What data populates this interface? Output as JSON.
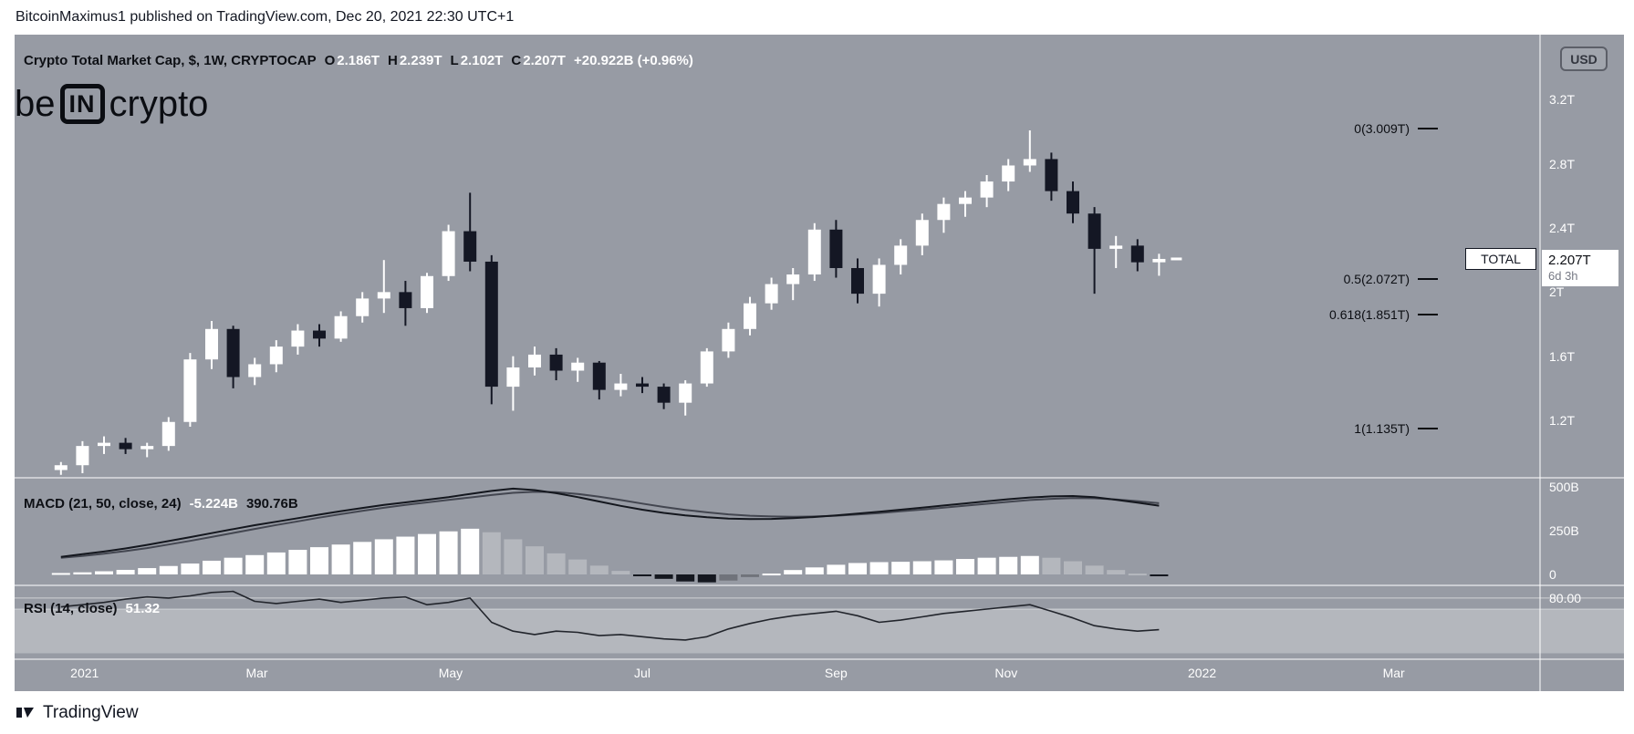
{
  "page": {
    "publish_line": "BitcoinMaximus1 published on TradingView.com, Dec 20, 2021 22:30 UTC+1",
    "footer_brand": "TradingView"
  },
  "watermark": {
    "part1": "be",
    "part2": "IN",
    "part3": "crypto"
  },
  "toolbar": {
    "currency_button": "USD"
  },
  "legend": {
    "title": "Crypto Total Market Cap, $, 1W, CRYPTOCAP",
    "ohlc": [
      {
        "k": "O",
        "v": "2.186T"
      },
      {
        "k": "H",
        "v": "2.239T"
      },
      {
        "k": "L",
        "v": "2.102T"
      },
      {
        "k": "C",
        "v": "2.207T"
      }
    ],
    "change": "+20.922B (+0.96%)"
  },
  "macd_legend": {
    "title": "MACD (21, 50, close, 24)",
    "hist_value": "-5.224B",
    "line_value": "390.76B"
  },
  "rsi_legend": {
    "title": "RSI (14, close)",
    "value": "51.32"
  },
  "fib_levels": [
    {
      "label": "0(3.009T)",
      "value": 3.009
    },
    {
      "label": "0.5(2.072T)",
      "value": 2.072
    },
    {
      "label": "0.618(1.851T)",
      "value": 1.851
    },
    {
      "label": "1(1.135T)",
      "value": 1.135
    }
  ],
  "price_label": {
    "symbol": "TOTAL",
    "price": "2.207T",
    "countdown": "6d 3h",
    "value": 2.207
  },
  "axes": {
    "price_ticks": [
      {
        "label": "3.2T",
        "value": 3.2
      },
      {
        "label": "2.8T",
        "value": 2.8
      },
      {
        "label": "2.4T",
        "value": 2.4
      },
      {
        "label": "2T",
        "value": 2.0
      },
      {
        "label": "1.6T",
        "value": 1.6
      },
      {
        "label": "1.2T",
        "value": 1.2
      }
    ],
    "macd_ticks": [
      {
        "label": "500B",
        "value": 500
      },
      {
        "label": "250B",
        "value": 250
      },
      {
        "label": "0",
        "value": 0
      }
    ],
    "rsi_ticks": [
      {
        "label": "80.00",
        "value": 80
      }
    ],
    "time_ticks": [
      {
        "label": "2021",
        "i": 1.1
      },
      {
        "label": "Mar",
        "i": 9.1
      },
      {
        "label": "May",
        "i": 18.1
      },
      {
        "label": "Jul",
        "i": 27.0
      },
      {
        "label": "Sep",
        "i": 36.0
      },
      {
        "label": "Nov",
        "i": 43.9
      },
      {
        "label": "2022",
        "i": 53.0
      },
      {
        "label": "Mar",
        "i": 61.9
      }
    ]
  },
  "colors": {
    "chart_bg": "#979ba4",
    "candle_up": "#ffffff",
    "candle_down": "#141724",
    "macd_line": "#14171e",
    "signal_line": "#434650",
    "rsi_line": "#22252c",
    "axis_text": "#ffffff"
  },
  "chart_data": [
    {
      "type": "candlestick",
      "title": "Crypto Total Market Cap, $, 1W, CRYPTOCAP",
      "interval": "1W",
      "unit": "T",
      "ylim": [
        0.85,
        3.35
      ],
      "x_labels": [
        "2021",
        "Mar",
        "May",
        "Jul",
        "Sep",
        "Nov",
        "2022",
        "Mar"
      ],
      "open": [
        0.89,
        0.92,
        1.04,
        1.06,
        1.02,
        1.04,
        1.19,
        1.58,
        1.77,
        1.47,
        1.55,
        1.66,
        1.76,
        1.71,
        1.85,
        1.96,
        2.0,
        1.9,
        2.1,
        2.38,
        2.19,
        1.41,
        1.53,
        1.61,
        1.51,
        1.56,
        1.39,
        1.43,
        1.41,
        1.31,
        1.43,
        1.63,
        1.77,
        1.93,
        2.05,
        2.11,
        2.39,
        2.15,
        1.99,
        2.17,
        2.29,
        2.45,
        2.55,
        2.59,
        2.69,
        2.79,
        2.83,
        2.63,
        2.49,
        2.27,
        2.29,
        2.186
      ],
      "high": [
        0.94,
        1.07,
        1.1,
        1.09,
        1.06,
        1.22,
        1.62,
        1.82,
        1.79,
        1.59,
        1.7,
        1.8,
        1.8,
        1.88,
        2.0,
        2.2,
        2.07,
        2.12,
        2.42,
        2.62,
        2.23,
        1.6,
        1.66,
        1.65,
        1.59,
        1.57,
        1.49,
        1.47,
        1.43,
        1.45,
        1.65,
        1.81,
        1.97,
        2.09,
        2.15,
        2.43,
        2.45,
        2.21,
        2.21,
        2.33,
        2.49,
        2.59,
        2.63,
        2.73,
        2.83,
        3.009,
        2.87,
        2.69,
        2.53,
        2.35,
        2.33,
        2.239
      ],
      "low": [
        0.86,
        0.87,
        0.99,
        0.99,
        0.97,
        1.01,
        1.16,
        1.52,
        1.4,
        1.42,
        1.5,
        1.61,
        1.66,
        1.69,
        1.81,
        1.87,
        1.79,
        1.87,
        2.07,
        2.13,
        1.3,
        1.26,
        1.48,
        1.45,
        1.44,
        1.33,
        1.35,
        1.37,
        1.27,
        1.23,
        1.41,
        1.59,
        1.73,
        1.89,
        1.95,
        2.07,
        2.09,
        1.93,
        1.91,
        2.11,
        2.23,
        2.37,
        2.47,
        2.53,
        2.63,
        2.75,
        2.57,
        2.43,
        1.99,
        2.15,
        2.13,
        2.102
      ],
      "close": [
        0.92,
        1.04,
        1.06,
        1.02,
        1.04,
        1.19,
        1.58,
        1.77,
        1.47,
        1.55,
        1.66,
        1.76,
        1.71,
        1.85,
        1.96,
        2.0,
        1.9,
        2.1,
        2.38,
        2.19,
        1.41,
        1.53,
        1.61,
        1.51,
        1.56,
        1.39,
        1.43,
        1.41,
        1.31,
        1.43,
        1.63,
        1.77,
        1.93,
        2.05,
        2.11,
        2.39,
        2.15,
        1.99,
        2.17,
        2.29,
        2.45,
        2.55,
        2.59,
        2.69,
        2.79,
        2.83,
        2.63,
        2.49,
        2.27,
        2.29,
        2.186,
        2.207
      ]
    },
    {
      "type": "bar",
      "name": "MACD (21, 50, close, 24)",
      "unit": "B",
      "ylim": [
        -60,
        550
      ],
      "histogram": [
        8,
        12,
        18,
        26,
        36,
        48,
        62,
        78,
        95,
        110,
        125,
        140,
        155,
        170,
        185,
        200,
        215,
        230,
        245,
        260,
        240,
        200,
        160,
        120,
        85,
        50,
        20,
        -5,
        -25,
        -40,
        -45,
        -35,
        -15,
        5,
        25,
        40,
        55,
        65,
        70,
        72,
        75,
        80,
        88,
        95,
        100,
        105,
        95,
        75,
        50,
        25,
        5,
        -5
      ],
      "macd": [
        100,
        115,
        130,
        148,
        168,
        190,
        212,
        235,
        258,
        280,
        300,
        320,
        340,
        360,
        378,
        395,
        410,
        425,
        440,
        458,
        475,
        488,
        480,
        462,
        440,
        415,
        390,
        368,
        350,
        336,
        325,
        318,
        315,
        316,
        320,
        327,
        336,
        346,
        357,
        368,
        380,
        392,
        404,
        416,
        428,
        438,
        444,
        446,
        440,
        425,
        408,
        391
      ],
      "signal": [
        95,
        105,
        118,
        133,
        150,
        170,
        191,
        213,
        236,
        259,
        281,
        302,
        323,
        343,
        362,
        379,
        395,
        410,
        424,
        438,
        452,
        464,
        470,
        468,
        458,
        442,
        423,
        403,
        384,
        367,
        353,
        342,
        334,
        330,
        328,
        330,
        334,
        341,
        349,
        359,
        369,
        380,
        391,
        402,
        413,
        423,
        430,
        434,
        433,
        427,
        417,
        405
      ]
    },
    {
      "type": "line",
      "name": "RSI (14, close)",
      "ylim": [
        20,
        92
      ],
      "band": [
        30,
        70
      ],
      "upper_line": 80,
      "values": [
        72,
        74,
        76,
        79,
        81,
        80,
        82,
        85,
        86,
        77,
        75,
        77,
        79,
        76,
        78,
        80,
        81,
        74,
        76,
        80,
        58,
        50,
        47,
        50,
        49,
        46,
        47,
        45,
        43,
        42,
        45,
        52,
        57,
        61,
        64,
        66,
        68,
        64,
        58,
        60,
        63,
        66,
        68,
        70,
        72,
        74,
        68,
        62,
        55,
        52,
        50,
        51.32
      ]
    }
  ]
}
